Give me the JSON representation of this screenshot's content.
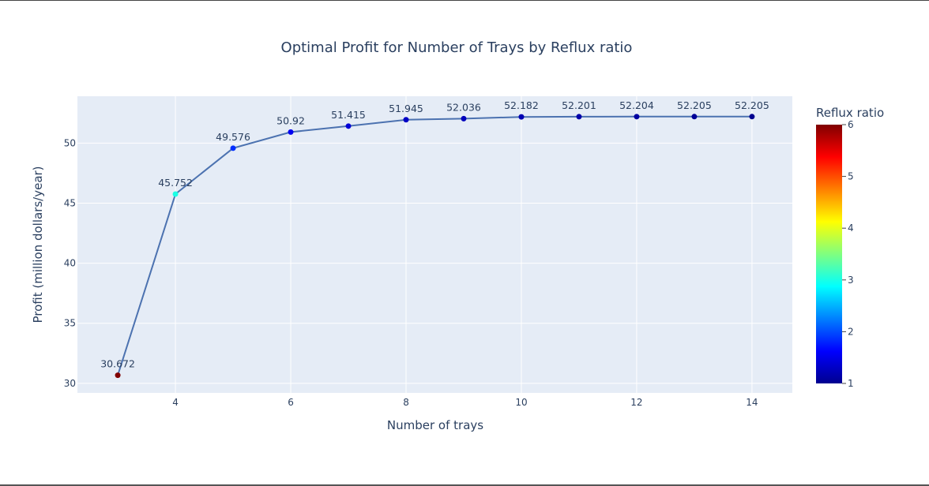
{
  "chart_data": {
    "type": "line",
    "title": "Optimal Profit for Number of Trays by Reflux ratio",
    "xlabel": "Number of trays",
    "ylabel": "Profit (million dollars/year)",
    "xlim": [
      2.3,
      14.7
    ],
    "ylim": [
      29.2,
      53.9
    ],
    "x_ticks": [
      4,
      6,
      8,
      10,
      12,
      14
    ],
    "y_ticks": [
      30,
      35,
      40,
      45,
      50
    ],
    "grid": true,
    "line_color": "#4c72b0",
    "plot_background": "#e5ecf6",
    "points": [
      {
        "x": 3,
        "y": 30.672,
        "label": "30.672",
        "reflux": 6.0
      },
      {
        "x": 4,
        "y": 45.752,
        "label": "45.752",
        "reflux": 3.0
      },
      {
        "x": 5,
        "y": 49.576,
        "label": "49.576",
        "reflux": 1.85
      },
      {
        "x": 6,
        "y": 50.92,
        "label": "50.92",
        "reflux": 1.55
      },
      {
        "x": 7,
        "y": 51.415,
        "label": "51.415",
        "reflux": 1.4
      },
      {
        "x": 8,
        "y": 51.945,
        "label": "51.945",
        "reflux": 1.3
      },
      {
        "x": 9,
        "y": 52.036,
        "label": "52.036",
        "reflux": 1.25
      },
      {
        "x": 10,
        "y": 52.182,
        "label": "52.182",
        "reflux": 1.2
      },
      {
        "x": 11,
        "y": 52.201,
        "label": "52.201",
        "reflux": 1.15
      },
      {
        "x": 12,
        "y": 52.204,
        "label": "52.204",
        "reflux": 1.1
      },
      {
        "x": 13,
        "y": 52.205,
        "label": "52.205",
        "reflux": 1.05
      },
      {
        "x": 14,
        "y": 52.205,
        "label": "52.205",
        "reflux": 1.0
      }
    ],
    "colorbar": {
      "title": "Reflux ratio",
      "range": [
        1,
        6
      ],
      "ticks": [
        1,
        2,
        3,
        4,
        5,
        6
      ],
      "colorscale": "jet",
      "stops": [
        {
          "v": 0.0,
          "c": "#00008f"
        },
        {
          "v": 0.125,
          "c": "#0000ff"
        },
        {
          "v": 0.375,
          "c": "#00ffff"
        },
        {
          "v": 0.625,
          "c": "#ffff00"
        },
        {
          "v": 0.875,
          "c": "#ff0000"
        },
        {
          "v": 1.0,
          "c": "#800000"
        }
      ]
    }
  }
}
